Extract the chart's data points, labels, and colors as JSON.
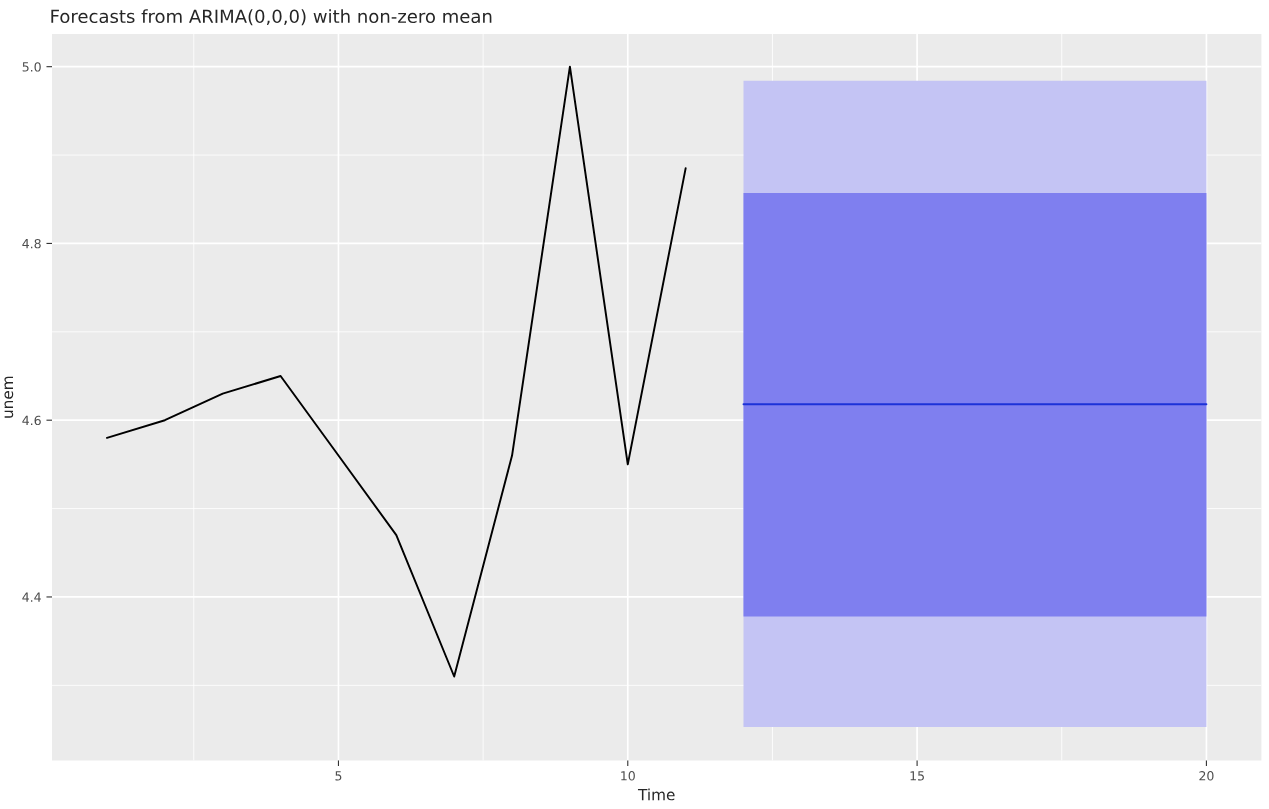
{
  "chart_data": {
    "type": "line",
    "title": "Forecasts from ARIMA(0,0,0) with non-zero mean",
    "xlabel": "Time",
    "ylabel": "unem",
    "series": [
      {
        "color": "#000000",
        "x": [
          1,
          2,
          3,
          4,
          5,
          6,
          7,
          8,
          9,
          10,
          11
        ],
        "values": [
          4.58,
          4.6,
          4.63,
          4.65,
          4.56,
          4.47,
          4.31,
          4.56,
          5.0,
          4.55,
          4.885
        ]
      },
      {
        "color": "#c4c4f4",
        "x": [
          12,
          13,
          14,
          15,
          16,
          17,
          18,
          19,
          20
        ],
        "values": [
          null,
          null,
          null,
          null,
          null,
          null,
          null,
          null,
          null
        ],
        "lower": [
          4.253,
          4.253,
          4.253,
          4.253,
          4.253,
          4.253,
          4.253,
          4.253,
          4.253
        ],
        "upper": [
          4.984,
          4.984,
          4.984,
          4.984,
          4.984,
          4.984,
          4.984,
          4.984,
          4.984
        ]
      },
      {
        "color": "#7f7fef",
        "x": [
          12,
          13,
          14,
          15,
          16,
          17,
          18,
          19,
          20
        ],
        "values": [
          null,
          null,
          null,
          null,
          null,
          null,
          null,
          null,
          null
        ],
        "lower": [
          4.378,
          4.378,
          4.378,
          4.378,
          4.378,
          4.378,
          4.378,
          4.378,
          4.378
        ],
        "upper": [
          4.857,
          4.857,
          4.857,
          4.857,
          4.857,
          4.857,
          4.857,
          4.857,
          4.857
        ]
      },
      {
        "color": "#1c32d8",
        "x": [
          12,
          13,
          14,
          15,
          16,
          17,
          18,
          19,
          20
        ],
        "values": [
          4.618,
          4.618,
          4.618,
          4.618,
          4.618,
          4.618,
          4.618,
          4.618,
          4.618
        ]
      }
    ],
    "xlim": [
      0.05,
      20.95
    ],
    "ylim": [
      4.215,
      5.037
    ],
    "xticks": [
      5,
      10,
      15,
      20
    ],
    "yticks": [
      {
        "value": 4.4,
        "label": "4.4"
      },
      {
        "value": 4.6,
        "label": "4.6"
      },
      {
        "value": 4.8,
        "label": "4.8"
      },
      {
        "value": 5.0,
        "label": "5.0"
      }
    ],
    "grid": true,
    "legend": false
  }
}
